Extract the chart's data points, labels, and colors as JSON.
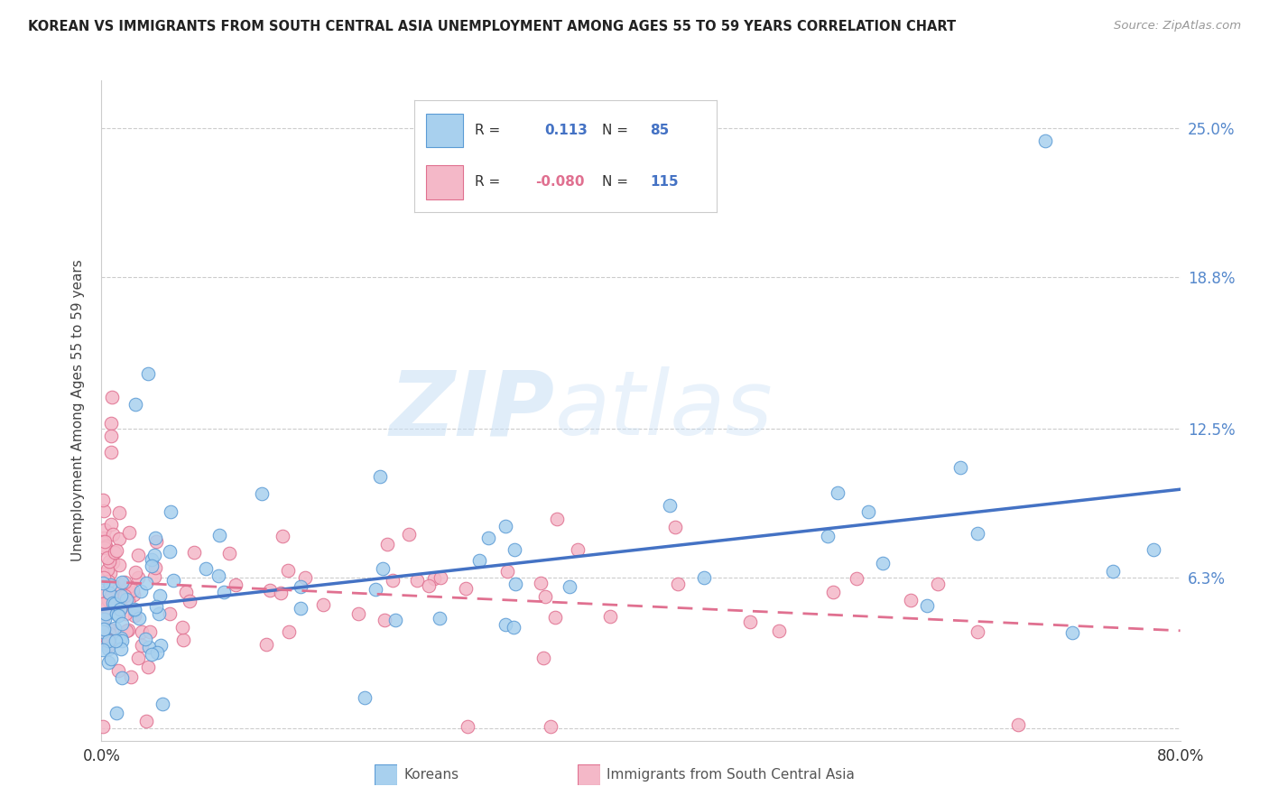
{
  "title": "KOREAN VS IMMIGRANTS FROM SOUTH CENTRAL ASIA UNEMPLOYMENT AMONG AGES 55 TO 59 YEARS CORRELATION CHART",
  "source": "Source: ZipAtlas.com",
  "ylabel": "Unemployment Among Ages 55 to 59 years",
  "ytick_labels": [
    "",
    "6.3%",
    "12.5%",
    "18.8%",
    "25.0%"
  ],
  "ytick_values": [
    0.0,
    0.063,
    0.125,
    0.188,
    0.25
  ],
  "xlim": [
    0.0,
    0.8
  ],
  "ylim": [
    -0.005,
    0.27
  ],
  "watermark_zip": "ZIP",
  "watermark_atlas": "atlas",
  "legend_korean_R": " 0.113",
  "legend_korean_N": "85",
  "legend_imm_R": "-0.080",
  "legend_imm_N": "115",
  "color_korean_fill": "#a8d0ee",
  "color_korean_edge": "#5b9bd5",
  "color_korean_line": "#4472c4",
  "color_imm_fill": "#f4b8c8",
  "color_imm_edge": "#e07090",
  "color_imm_line": "#e07090",
  "seed": 12345
}
